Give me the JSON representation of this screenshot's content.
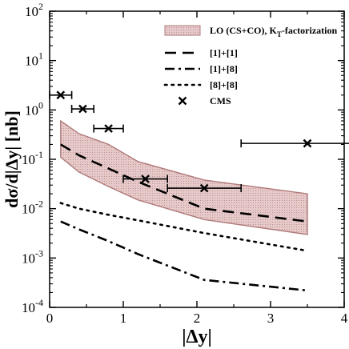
{
  "chart_data": {
    "type": "line",
    "title": "",
    "xlabel": "|Δy|",
    "ylabel": "dσ/d|Δy| [nb]",
    "xlim": [
      0,
      4
    ],
    "ylim": [
      0.0001,
      100
    ],
    "yscale": "log",
    "grid": false,
    "legend_position": "top-right",
    "x_ticks": [
      0,
      1,
      2,
      3,
      4
    ],
    "x_tick_labels": [
      "0",
      "1",
      "2",
      "3",
      "4"
    ],
    "y_ticks": [
      0.0001,
      0.001,
      0.01,
      0.1,
      1,
      10,
      100
    ],
    "y_tick_labels": [
      {
        "base": "10",
        "exp": "-4"
      },
      {
        "base": "10",
        "exp": "-3"
      },
      {
        "base": "10",
        "exp": "-2"
      },
      {
        "base": "10",
        "exp": "-1"
      },
      {
        "base": "10",
        "exp": "0"
      },
      {
        "base": "10",
        "exp": "1"
      },
      {
        "base": "10",
        "exp": "2"
      }
    ],
    "band": {
      "name": "LO (CS+CO), K",
      "name_sub": "T",
      "name_suffix": "-factorization",
      "fill": "#e8c9c9",
      "edge": "#b07a7a",
      "x": [
        0.15,
        0.4,
        0.8,
        1.2,
        2.1,
        3.5
      ],
      "upper": [
        0.6,
        0.33,
        0.2,
        0.09,
        0.038,
        0.02
      ],
      "lower": [
        0.11,
        0.055,
        0.028,
        0.015,
        0.006,
        0.003
      ]
    },
    "series": [
      {
        "name": "[1]+[1]",
        "style": "dashed",
        "x": [
          0.15,
          0.4,
          0.8,
          1.2,
          2.1,
          3.5
        ],
        "y": [
          0.2,
          0.12,
          0.065,
          0.035,
          0.01,
          0.0055
        ]
      },
      {
        "name": "[1]+[8]",
        "style": "dashdot",
        "x": [
          0.15,
          0.4,
          0.8,
          1.2,
          2.1,
          3.5
        ],
        "y": [
          0.0055,
          0.0038,
          0.0022,
          0.0012,
          0.00036,
          0.00022
        ]
      },
      {
        "name": "[8]+[8]",
        "style": "dotted",
        "x": [
          0.15,
          0.4,
          0.8,
          1.2,
          2.1,
          3.5
        ],
        "y": [
          0.013,
          0.01,
          0.0075,
          0.0058,
          0.0032,
          0.0014
        ]
      }
    ],
    "data_points": {
      "name": "CMS",
      "marker": "x",
      "points": [
        {
          "x": 0.15,
          "xerr": 0.15,
          "y": 2.0
        },
        {
          "x": 0.45,
          "xerr": 0.15,
          "y": 1.05
        },
        {
          "x": 0.8,
          "xerr": 0.2,
          "y": 0.42
        },
        {
          "x": 1.3,
          "xerr": 0.3,
          "y": 0.04
        },
        {
          "x": 2.1,
          "xerr": 0.5,
          "y": 0.026
        },
        {
          "x": 3.5,
          "xerr": 0.9,
          "y": 0.21
        }
      ]
    }
  }
}
